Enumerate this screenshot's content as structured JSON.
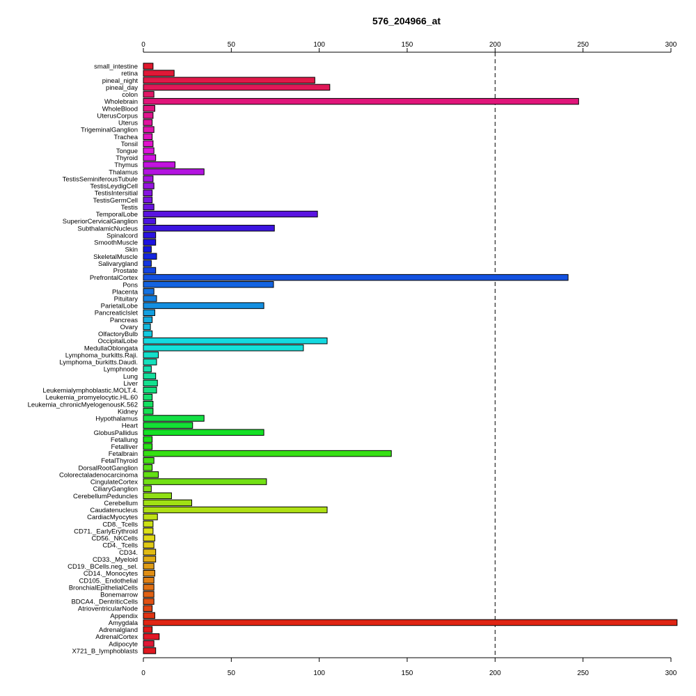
{
  "chart_data": {
    "type": "bar",
    "orientation": "horizontal",
    "title": "576_204966_at",
    "xlabel": "",
    "ylabel": "",
    "xlim": [
      0,
      300
    ],
    "xticks": [
      0,
      50,
      100,
      150,
      200,
      250,
      300
    ],
    "reference_line": 200,
    "categories": [
      "small_intestine",
      "retina",
      "pineal_night",
      "pineal_day",
      "colon",
      "Wholebrain",
      "WholeBlood",
      "UterusCorpus",
      "Uterus",
      "TrigeminalGanglion",
      "Trachea",
      "Tonsil",
      "Tongue",
      "Thyroid",
      "Thymus",
      "Thalamus",
      "TestisSeminiferousTubule",
      "TestisLeydigCell",
      "TestisIntersitial",
      "TestisGermCell",
      "Testis",
      "TemporalLobe",
      "SuperiorCervicalGanglion",
      "SubthalamicNucleus",
      "Spinalcord",
      "SmoothMuscle",
      "Skin",
      "SkeletalMuscle",
      "Salivarygland",
      "Prostate",
      "PrefrontalCortex",
      "Pons",
      "Placenta",
      "Pituitary",
      "ParietalLobe",
      "PancreaticIslet",
      "Pancreas",
      "Ovary",
      "OlfactoryBulb",
      "OccipitalLobe",
      "MedullaOblongata",
      "Lymphoma_burkitts.Raji.",
      "Lymphoma_burkitts.Daudi.",
      "Lymphnode",
      "Lung",
      "Liver",
      "Leukemialymphoblastic.MOLT.4.",
      "Leukemia_promyelocytic.HL.60",
      "Leukemia_chronicMyelogenousK.562",
      "Kidney",
      "Hypothalamus",
      "Heart",
      "GlobusPallidus",
      "Fetallung",
      "Fetalliver",
      "Fetalbrain",
      "FetalThyroid",
      "DorsalRootGanglion",
      "Colorectaladenocarcinoma",
      "CingulateCortex",
      "CiliaryGanglion",
      "CerebellumPeduncles",
      "Cerebellum",
      "Caudatenucleus",
      "CardiacMyocytes",
      "CD8._Tcells",
      "CD71._EarlyErythroid",
      "CD56._NKCells",
      "CD4._Tcells",
      "CD34.",
      "CD33._Myeloid",
      "CD19._BCells.neg._sel.",
      "CD14._Monocytes",
      "CD105._Endothelial",
      "BronchialEpithelialCells",
      "Bonemarrow",
      "BDCA4._DentriticCells",
      "AtrioventricularNode",
      "Appendix",
      "Amygdala",
      "Adrenalgland",
      "AdrenalCortex",
      "Adipocyte",
      "X721_B_lymphoblasts"
    ],
    "values": [
      5.5,
      17.5,
      97.5,
      106,
      6,
      247.5,
      6.5,
      5.5,
      5,
      6,
      5,
      5.5,
      6,
      7,
      18,
      34.5,
      5.5,
      6,
      5,
      5,
      6,
      99,
      7,
      74.5,
      7,
      7,
      4.5,
      7.5,
      4.5,
      7,
      241.5,
      74,
      6,
      7.5,
      68.5,
      6.5,
      5,
      4,
      5,
      104.5,
      91,
      8.5,
      7.5,
      4.5,
      7,
      8,
      7.5,
      5,
      5.5,
      5.5,
      34.5,
      28,
      68.5,
      5,
      5,
      141,
      6,
      5,
      8.5,
      70,
      4.5,
      16,
      27.5,
      104.5,
      8,
      5.5,
      5.5,
      6.5,
      6,
      7,
      7,
      6,
      6.5,
      6,
      6,
      6,
      6,
      5,
      6.5,
      303.5,
      5,
      9,
      6,
      7
    ],
    "colors": [
      "#E0182D",
      "#E01837",
      "#E01848",
      "#E01858",
      "#E01866",
      "#E0157A",
      "#E01580",
      "#E0158F",
      "#E0149E",
      "#E014AE",
      "#DF14BE",
      "#E014CC",
      "#DC14DD",
      "#D114E0",
      "#C214DF",
      "#B314E0",
      "#A514E0",
      "#9714E0",
      "#8614E0",
      "#7814E0",
      "#6914E0",
      "#5A14E0",
      "#4B14E0",
      "#3C14E0",
      "#2C14E0",
      "#1D14E0",
      "#1418DF",
      "#1426E0",
      "#1436E0",
      "#1444E0",
      "#1452E0",
      "#1463E0",
      "#1471E0",
      "#1480E0",
      "#148FE0",
      "#149FE0",
      "#14ADE0",
      "#14BBE0",
      "#14CAE0",
      "#14D9E0",
      "#14E0DA",
      "#14E0CB",
      "#14E0BC",
      "#14E0AD",
      "#14E09D",
      "#14E08E",
      "#14E07F",
      "#14E070",
      "#14E061",
      "#14E052",
      "#14E044",
      "#14E035",
      "#14E025",
      "#18E014",
      "#27E014",
      "#36E014",
      "#45E014",
      "#55E014",
      "#63E014",
      "#72E014",
      "#82E014",
      "#90E014",
      "#A0E014",
      "#AEE014",
      "#BEE014",
      "#CCE014",
      "#DCE014",
      "#E0D914",
      "#E0CA14",
      "#E0BA14",
      "#E0AC14",
      "#E09C14",
      "#E08E14",
      "#E07F14",
      "#E07014",
      "#E06114",
      "#E05114",
      "#E04314",
      "#E03414",
      "#E02514",
      "#E01818",
      "#E01827",
      "#E01836",
      "#E01820"
    ]
  }
}
